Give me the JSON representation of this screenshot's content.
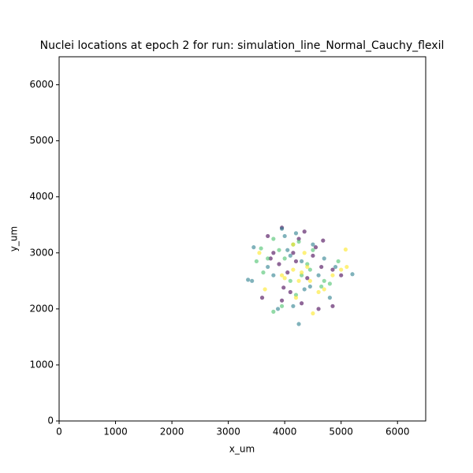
{
  "chart_data": {
    "type": "scatter",
    "title": "Nuclei locations at epoch 2 for run: simulation_line_Normal_Cauchy_flexil",
    "x_label": "x_um",
    "y_label": "y_um",
    "xlim": [
      0,
      6500
    ],
    "ylim": [
      0,
      6500
    ],
    "xticks": [
      0,
      1000,
      2000,
      3000,
      4000,
      5000,
      6000
    ],
    "yticks": [
      0,
      1000,
      2000,
      3000,
      4000,
      5000,
      6000
    ],
    "series": [
      {
        "color": "#440154",
        "x": [
          3950,
          4350,
          4680,
          3800,
          4150,
          4500,
          3900,
          4650,
          4850,
          3600,
          3950,
          4100,
          4300,
          4600,
          4850,
          4400,
          4050,
          3750,
          4550,
          4200,
          3700,
          5000,
          4250,
          3980
        ],
        "y": [
          3450,
          3380,
          3220,
          3000,
          3000,
          2950,
          2800,
          2750,
          2700,
          2200,
          2150,
          2300,
          2100,
          2000,
          2050,
          2550,
          2650,
          2900,
          3100,
          2850,
          3300,
          2600,
          3250,
          2380
        ]
      },
      {
        "color": "#2c7f8e",
        "x": [
          3950,
          4200,
          4500,
          3450,
          3350,
          3420,
          3800,
          4100,
          4300,
          4700,
          4900,
          4250,
          4150,
          4450,
          3700,
          4000,
          4600,
          4350,
          5200,
          4800,
          3880,
          4050
        ],
        "y": [
          3430,
          3350,
          3150,
          3100,
          2520,
          2500,
          2600,
          2950,
          2850,
          2900,
          2750,
          1730,
          2050,
          2400,
          2750,
          3300,
          2600,
          2350,
          2620,
          2200,
          2000,
          3050
        ]
      },
      {
        "color": "#4ac16d",
        "x": [
          3800,
          3950,
          4200,
          3620,
          4450,
          4000,
          3700,
          3900,
          4250,
          4500,
          3580,
          4400,
          4650,
          4700,
          4950,
          4100,
          4300,
          3500,
          3800,
          4800,
          4150
        ],
        "y": [
          1950,
          2050,
          2250,
          2650,
          2700,
          2900,
          2900,
          3050,
          3200,
          3050,
          3080,
          2800,
          2400,
          2500,
          2850,
          2500,
          2600,
          2850,
          3250,
          2450,
          3150
        ]
      },
      {
        "color": "#fde725",
        "x": [
          5080,
          5100,
          5000,
          4500,
          4150,
          4350,
          4300,
          4000,
          4200,
          4600,
          4400,
          3650,
          3550,
          4450,
          4700,
          4150,
          3950,
          4850,
          4250
        ],
        "y": [
          3060,
          2750,
          2700,
          1920,
          3150,
          3000,
          2650,
          2550,
          2200,
          2300,
          2750,
          2350,
          3000,
          2500,
          2350,
          2700,
          2600,
          2600,
          2500
        ]
      }
    ]
  }
}
